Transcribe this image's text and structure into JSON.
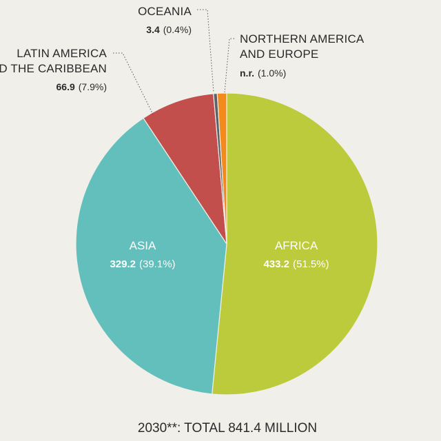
{
  "chart_data": {
    "type": "pie",
    "caption": "2030**: TOTAL 841.4 MILLION",
    "slices": [
      {
        "name": "AFRICA",
        "value_label": "433.2",
        "pct_label": "(51.5%)",
        "pct": 51.5,
        "color": "#bccb3b"
      },
      {
        "name": "ASIA",
        "value_label": "329.2",
        "pct_label": "(39.1%)",
        "pct": 39.1,
        "color": "#62bfbb"
      },
      {
        "name_lines": [
          "LATIN AMERICA",
          "AND THE CARIBBEAN"
        ],
        "value_label": "66.9",
        "pct_label": "(7.9%)",
        "pct": 7.9,
        "color": "#c24f4c"
      },
      {
        "name": "OCEANIA",
        "value_label": "3.4",
        "pct_label": "(0.4%)",
        "pct": 0.4,
        "color": "#5e6268"
      },
      {
        "name_lines": [
          "NORTHERN AMERICA",
          "AND EUROPE"
        ],
        "value_label": "n.r.",
        "pct_label": "(1.0%)",
        "pct": 1.0,
        "color": "#f38a1c"
      }
    ]
  }
}
